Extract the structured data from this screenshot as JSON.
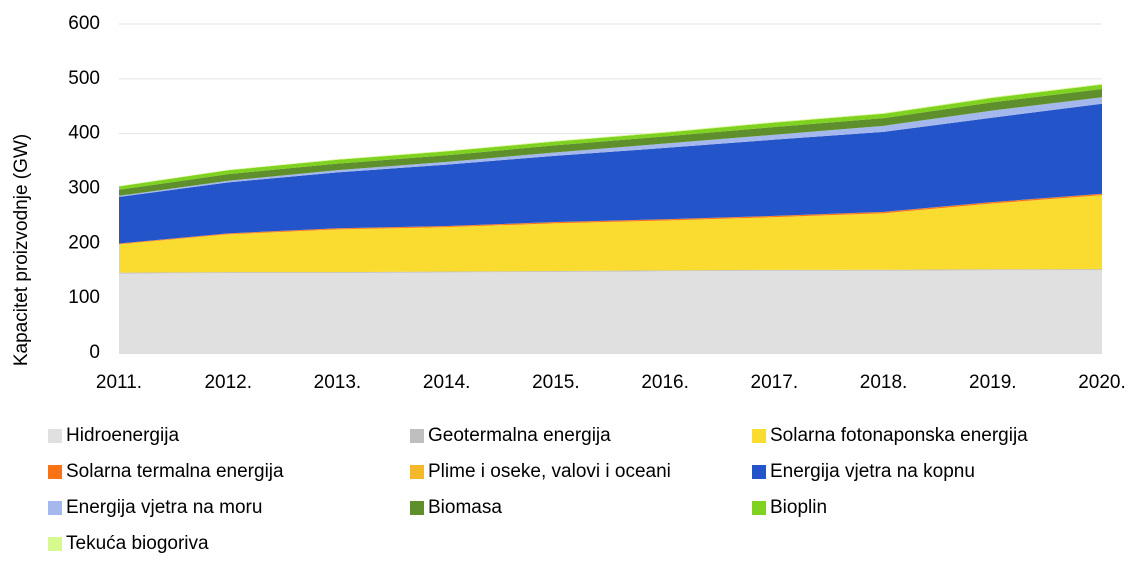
{
  "chart_data": {
    "type": "stacked_area",
    "ylabel": "Kapacitet proizvodnje (GW)",
    "categories": [
      "2011.",
      "2012.",
      "2013.",
      "2014.",
      "2015.",
      "2016.",
      "2017.",
      "2018.",
      "2019.",
      "2020."
    ],
    "ylim": [
      0,
      600
    ],
    "yticks": [
      0,
      100,
      200,
      300,
      400,
      500,
      600
    ],
    "grid": true,
    "legend": "bottom",
    "series": [
      {
        "name": "Hidroenergija",
        "color": "#e0e0e0",
        "values": [
          145,
          146,
          146,
          147,
          148,
          149,
          150,
          150,
          151,
          151
        ]
      },
      {
        "name": "Geotermalna energija",
        "color": "#bfbfbf",
        "values": [
          1.4,
          1.5,
          1.5,
          1.6,
          1.6,
          1.7,
          1.7,
          1.8,
          1.8,
          1.9
        ]
      },
      {
        "name": "Solarna fotonaponska energija",
        "color": "#fadb2f",
        "values": [
          52,
          69,
          78,
          81,
          87,
          91,
          96,
          103,
          120,
          135
        ]
      },
      {
        "name": "Solarna termalna energija",
        "color": "#f97316",
        "values": [
          1.1,
          1.5,
          1.7,
          1.8,
          2,
          2.1,
          2.2,
          2.3,
          2.3,
          2.4
        ]
      },
      {
        "name": "Plime i oseke, valovi i oceani",
        "color": "#f5b82a",
        "values": [
          0.2,
          0.2,
          0.2,
          0.2,
          0.2,
          0.2,
          0.2,
          0.2,
          0.2,
          0.2
        ]
      },
      {
        "name": "Energija vjetra na kopnu",
        "color": "#2354c9",
        "values": [
          85,
          93,
          102,
          112,
          121,
          130,
          139,
          146,
          154,
          164
        ]
      },
      {
        "name": "Energija vjetra na moru",
        "color": "#a4b8ee",
        "values": [
          2,
          3,
          4,
          5,
          6,
          8,
          9,
          11,
          13,
          12
        ]
      },
      {
        "name": "Biomasa",
        "color": "#5f8f2c",
        "values": [
          11,
          12,
          12,
          12,
          13,
          13,
          14,
          14,
          15,
          15
        ]
      },
      {
        "name": "Bioplin",
        "color": "#7fd21f",
        "values": [
          6,
          7,
          7,
          7,
          7,
          7,
          8,
          8,
          8,
          8
        ]
      },
      {
        "name": "Tekuća biogoriva",
        "color": "#d6f88e",
        "values": [
          1,
          1,
          1.2,
          1.2,
          1.3,
          1.3,
          1.4,
          1.4,
          1.5,
          1.5
        ]
      }
    ]
  }
}
